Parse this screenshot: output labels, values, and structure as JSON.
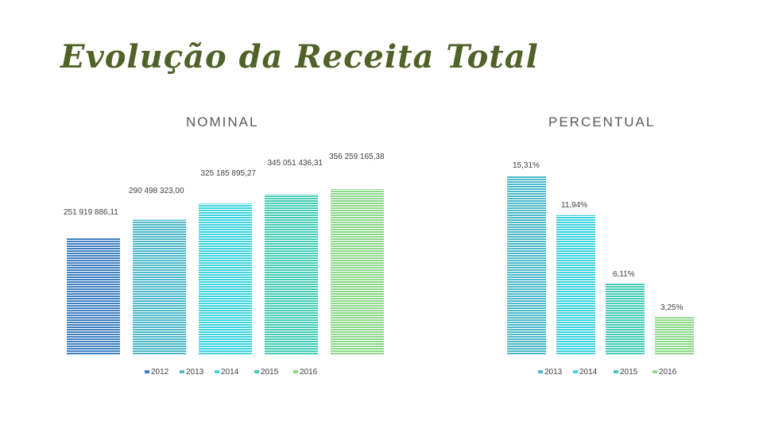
{
  "slide_title": "Evolução da Receita Total",
  "colors": {
    "title": "#4f6228",
    "2012": "#3f7fbf",
    "2013": "#4cb8c9",
    "2014": "#40d4de",
    "2015": "#44ccb4",
    "2016": "#8fd88a"
  },
  "chart_data": [
    {
      "type": "bar",
      "title": "NOMINAL",
      "categories": [
        "2012",
        "2013",
        "2014",
        "2015",
        "2016"
      ],
      "values": [
        251919886.11,
        290498323.0,
        325185895.27,
        345051436.31,
        356259165.38
      ],
      "labels": [
        "251 919 886,11",
        "290 498 323,00",
        "325 185 895,27",
        "345 051 436,31",
        "356 259 165,38"
      ],
      "legend": [
        "2012",
        "2013",
        "2014",
        "2015",
        "2016"
      ],
      "legend_position": "bottom",
      "xlabel": "",
      "ylabel": "",
      "ylim": [
        0,
        400000000
      ],
      "grid": false
    },
    {
      "type": "bar",
      "title": "PERCENTUAL",
      "categories": [
        "2013",
        "2014",
        "2015",
        "2016"
      ],
      "values": [
        15.31,
        11.94,
        6.11,
        3.25
      ],
      "labels": [
        "15,31%",
        "11,94%",
        "6,11%",
        "3,25%"
      ],
      "legend": [
        "2013",
        "2014",
        "2015",
        "2016"
      ],
      "legend_position": "bottom",
      "xlabel": "",
      "ylabel": "",
      "ylim": [
        0,
        20
      ],
      "grid": false
    }
  ]
}
